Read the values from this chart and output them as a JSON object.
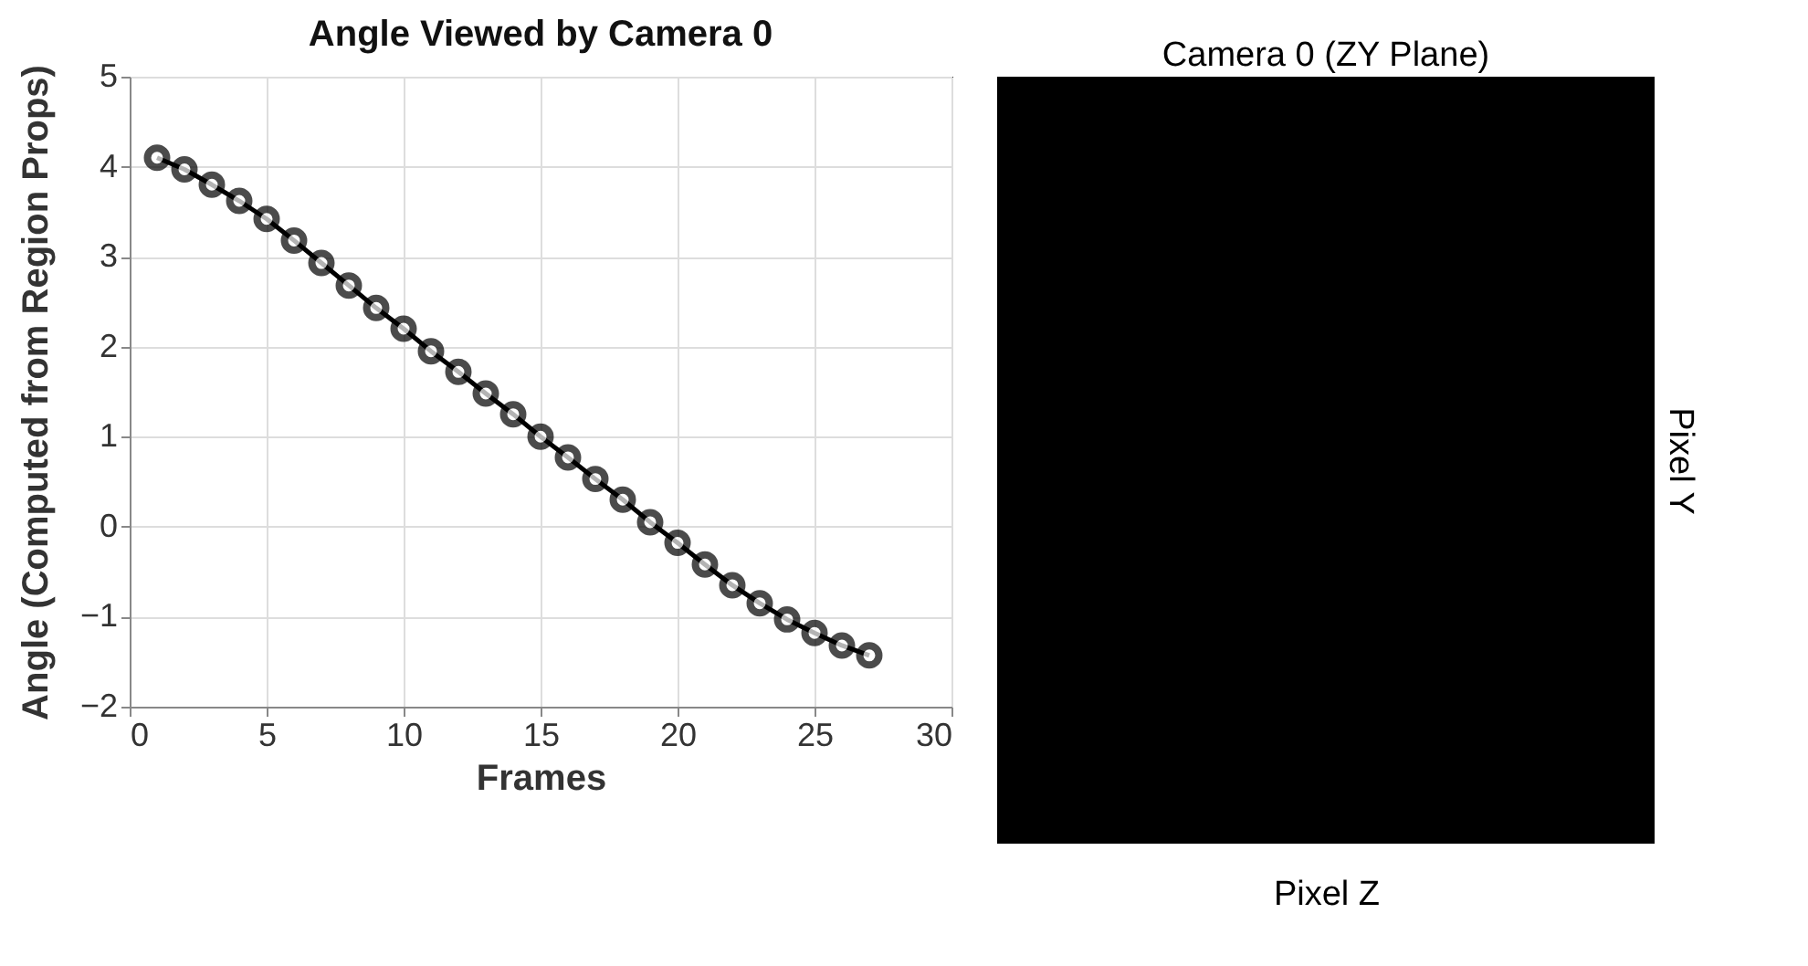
{
  "chart_data": [
    {
      "type": "line",
      "title": "Angle Viewed by Camera 0",
      "xlabel": "Frames",
      "ylabel": "Angle (Computed from Region Props)",
      "x": [
        1,
        2,
        3,
        4,
        5,
        6,
        7,
        8,
        9,
        10,
        11,
        12,
        13,
        14,
        15,
        16,
        17,
        18,
        19,
        20,
        21,
        22,
        23,
        24,
        25,
        26,
        27
      ],
      "series": [
        {
          "color": "#000000",
          "values": [
            4.1,
            3.97,
            3.8,
            3.62,
            3.42,
            3.18,
            2.93,
            2.68,
            2.43,
            2.2,
            1.95,
            1.72,
            1.48,
            1.25,
            1.0,
            0.77,
            0.53,
            0.3,
            0.05,
            -0.18,
            -0.42,
            -0.65,
            -0.85,
            -1.03,
            -1.18,
            -1.32,
            -1.43
          ]
        }
      ],
      "xlim": [
        0,
        30
      ],
      "xticks": [
        0,
        5,
        10,
        15,
        20,
        25,
        30
      ],
      "ylim": [
        -2,
        5
      ],
      "yticks": [
        -2,
        -1,
        0,
        1,
        2,
        3,
        4,
        5
      ],
      "grid": true,
      "marker": "circle",
      "line_style": "solid"
    },
    {
      "type": "other",
      "title": "Camera 0 (ZY Plane)",
      "xlabel": "Pixel Z",
      "ylabel": "Pixel Y"
    }
  ]
}
